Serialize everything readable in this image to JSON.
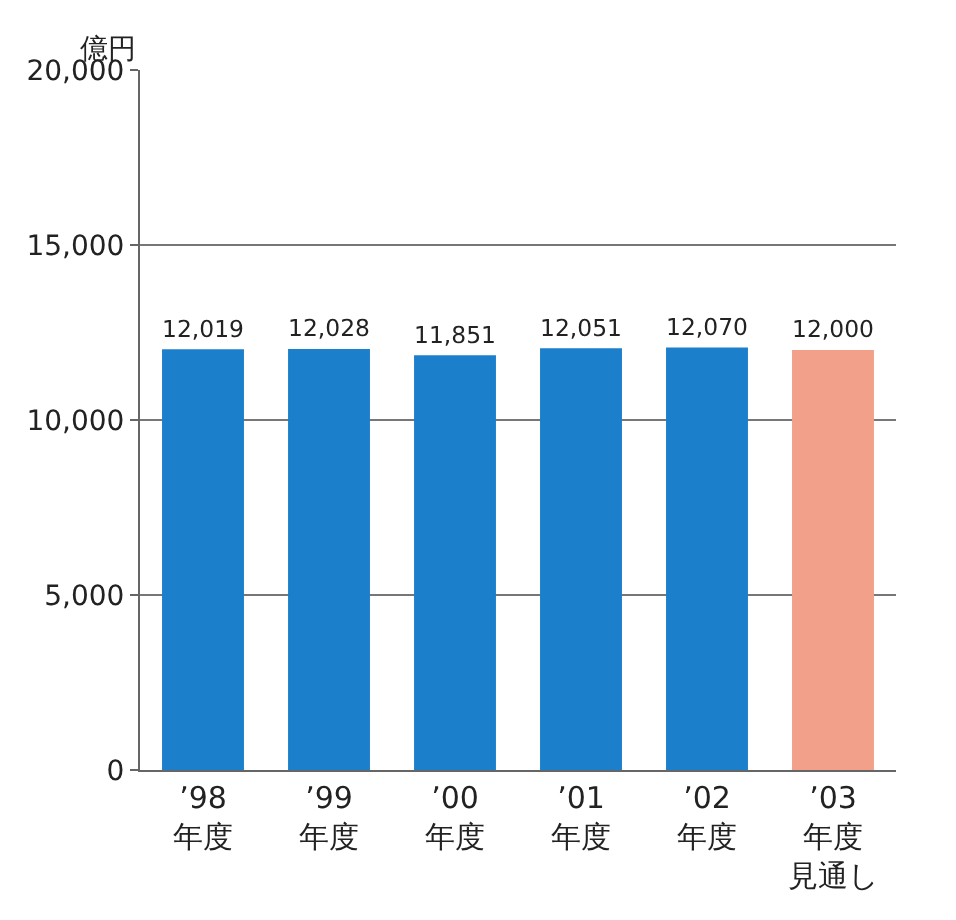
{
  "chart_data": {
    "type": "bar",
    "ylabel": "億円",
    "categories": [
      "’98年度",
      "’99年度",
      "’00年度",
      "’01年度",
      "’02年度",
      "’03年度見通し"
    ],
    "values": [
      12019,
      12028,
      11851,
      12051,
      12070,
      12000
    ],
    "value_labels": [
      "12,019",
      "12,028",
      "11,851",
      "12,051",
      "12,070",
      "12,000"
    ],
    "colors": [
      "#1b7fcc",
      "#1b7fcc",
      "#1b7fcc",
      "#1b7fcc",
      "#1b7fcc",
      "#f2a08a"
    ],
    "ylim": [
      0,
      20000
    ],
    "yticks": [
      0,
      {
        "value": 5000,
        "label": "5,000"
      },
      {
        "value": 10000,
        "label": "10,000"
      },
      {
        "value": 15000,
        "label": "15,000"
      },
      {
        "value": 20000,
        "label": "20,000"
      }
    ],
    "grid": "y",
    "legend": false
  }
}
